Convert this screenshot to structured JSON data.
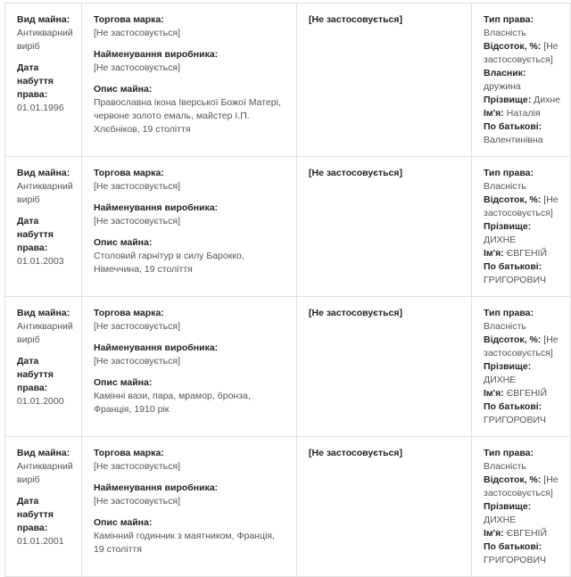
{
  "labels": {
    "property_type": "Вид майна:",
    "acquisition_date": "Дата набуття права:",
    "trademark": "Торгова марка:",
    "manufacturer": "Найменування виробника:",
    "description": "Опис майна:",
    "right_type": "Тип права:",
    "share": "Відсоток, %:",
    "owner": "Власник:",
    "surname": "Прізвище:",
    "name": "Ім'я:",
    "patronymic": "По батькові:"
  },
  "rows": [
    {
      "property_type": "Антикварний виріб",
      "acquisition_date": "01.01.1996",
      "trademark": "[Не застосовується]",
      "manufacturer": "[Не застосовується]",
      "description": "Православна ікона Іверської Божої Матері, червоне золото емаль, майстер І.П. Хлєбніков, 19 століття",
      "col3": "[Не застосовується]",
      "right_type": "Власність",
      "share": "[Не застосовується]",
      "owner": "дружина",
      "surname": "Дихне",
      "name": "Наталія",
      "patronymic": "Валентинівна"
    },
    {
      "property_type": "Антикварний виріб",
      "acquisition_date": "01.01.2003",
      "trademark": "[Не застосовується]",
      "manufacturer": "[Не застосовується]",
      "description": "Столовий гарнітур в силу Барокко, Німеччина, 19 століття",
      "col3": "[Не застосовується]",
      "right_type": "Власність",
      "share": "[Не застосовується]",
      "surname": "ДИХНЕ",
      "name": "ЄВГЕНІЙ",
      "patronymic": "ГРИГОРОВИЧ"
    },
    {
      "property_type": "Антикварний виріб",
      "acquisition_date": "01.01.2000",
      "trademark": "[Не застосовується]",
      "manufacturer": "[Не застосовується]",
      "description": "Камінні вази, пара, мрамор, бронза, Франція, 1910 рік",
      "col3": "[Не застосовується]",
      "right_type": "Власність",
      "share": "[Не застосовується]",
      "surname": "ДИХНЕ",
      "name": "ЄВГЕНІЙ",
      "patronymic": "ГРИГОРОВИЧ"
    },
    {
      "property_type": "Антикварний виріб",
      "acquisition_date": "01.01.2001",
      "trademark": "[Не застосовується]",
      "manufacturer": "[Не застосовується]",
      "description": "Камінний годинник з маятником, Франція, 19 століття",
      "col3": "[Не застосовується]",
      "right_type": "Власність",
      "share": "[Не застосовується]",
      "surname": "ДИХНЕ",
      "name": "ЄВГЕНІЙ",
      "patronymic": "ГРИГОРОВИЧ"
    }
  ]
}
